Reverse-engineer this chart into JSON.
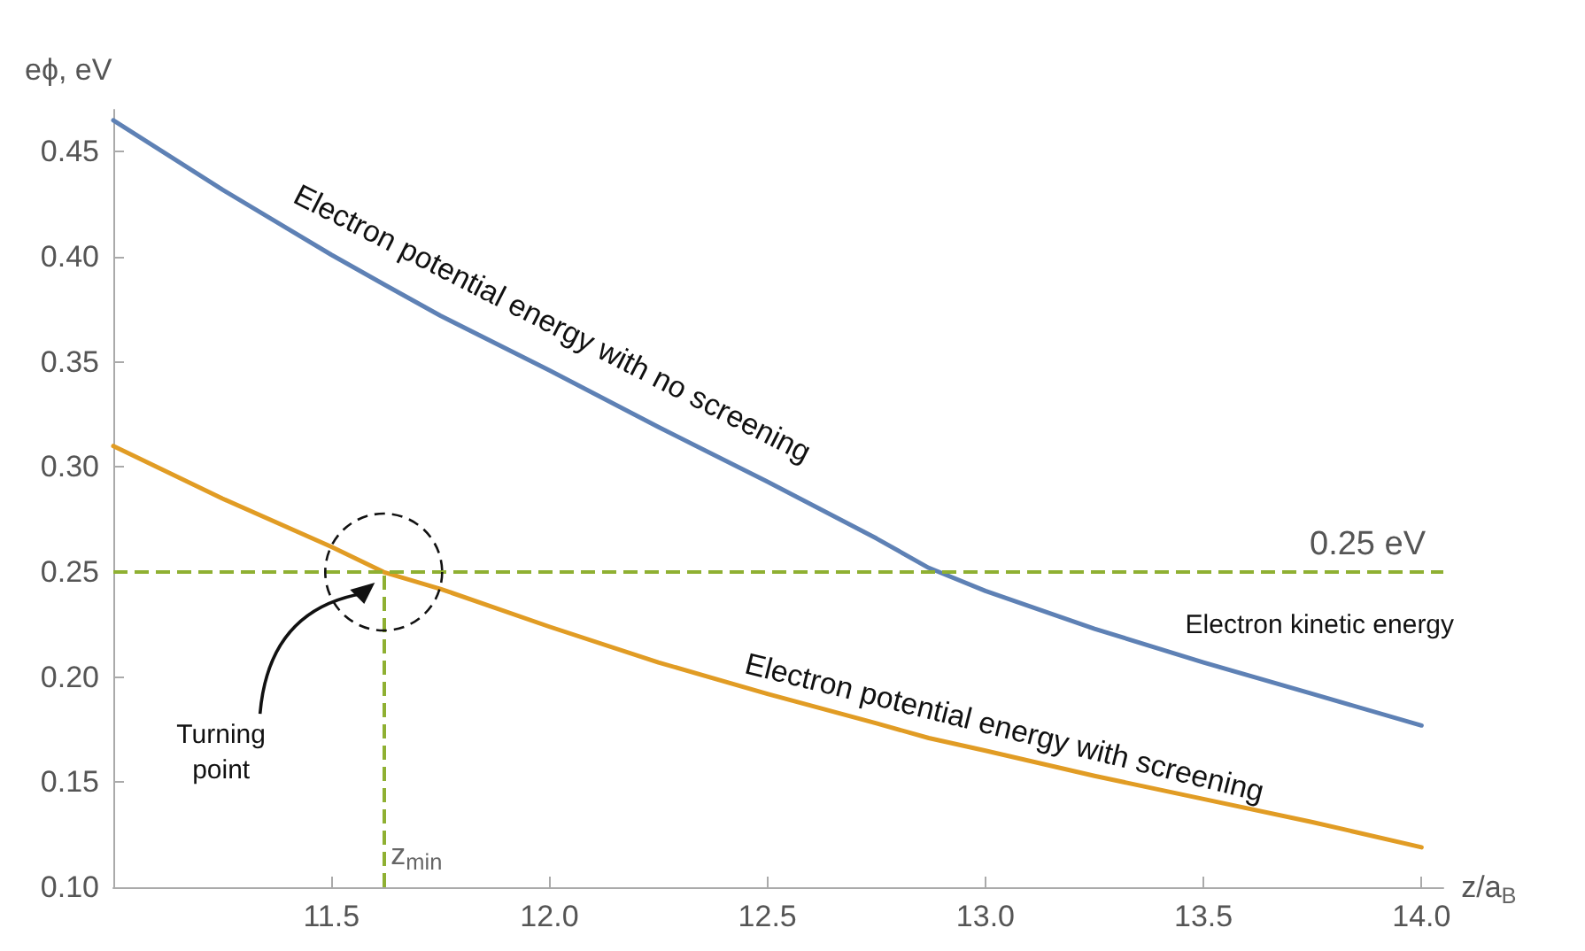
{
  "chart_data": {
    "type": "line",
    "xlabel": "z/a$_{B}$",
    "ylabel": "eϕ, eV",
    "x": [
      11.0,
      11.25,
      11.5,
      11.62,
      11.75,
      12.0,
      12.25,
      12.5,
      12.75,
      12.87,
      13.0,
      13.25,
      13.5,
      13.75,
      14.0
    ],
    "series": [
      {
        "color": "#5e81b5",
        "values": [
          0.465,
          0.432,
          0.401,
          0.387,
          0.372,
          0.346,
          0.319,
          0.293,
          0.266,
          0.252,
          0.241,
          0.223,
          0.207,
          0.192,
          0.177
        ]
      },
      {
        "color": "#e19c24",
        "values": [
          0.31,
          0.285,
          0.262,
          0.25,
          0.242,
          0.224,
          0.207,
          0.192,
          0.178,
          0.171,
          0.165,
          0.153,
          0.142,
          0.131,
          0.119
        ]
      }
    ],
    "xlim": [
      11.0,
      14.05
    ],
    "xticks": [
      {
        "value": 11.0,
        "label": null
      },
      11.5,
      {
        "value": 12.0,
        "label": "12.0"
      },
      12.5,
      {
        "value": 13.0,
        "label": "13.0"
      },
      13.5,
      {
        "value": 14.0,
        "label": "14.0"
      }
    ],
    "ylim": [
      0.1,
      0.47
    ],
    "yticks": [
      {
        "value": 0.1,
        "label": "0.10"
      },
      {
        "value": 0.15,
        "label": "0.15"
      },
      {
        "value": 0.2,
        "label": "0.20"
      },
      {
        "value": 0.25,
        "label": "0.25"
      },
      {
        "value": 0.3,
        "label": "0.30"
      },
      {
        "value": 0.35,
        "label": "0.35"
      },
      {
        "value": 0.4,
        "label": "0.40"
      },
      {
        "value": 0.45,
        "label": "0.45"
      }
    ],
    "ref_lines": [
      {
        "axis": "y",
        "value": 0.25,
        "label": "0.25 eV",
        "color": "#8fb032",
        "line_style": "dashed"
      },
      {
        "axis": "x",
        "value": 11.62,
        "label": "z$_{min}$",
        "color": "#8fb032",
        "line_style": "dashed"
      }
    ],
    "annotations": [
      "Electron potential energy with no screening",
      "Electron potential energy with screening",
      "Electron kinetic energy",
      "Turning point"
    ],
    "grid": false,
    "marker": "none",
    "line_style": "solid"
  }
}
